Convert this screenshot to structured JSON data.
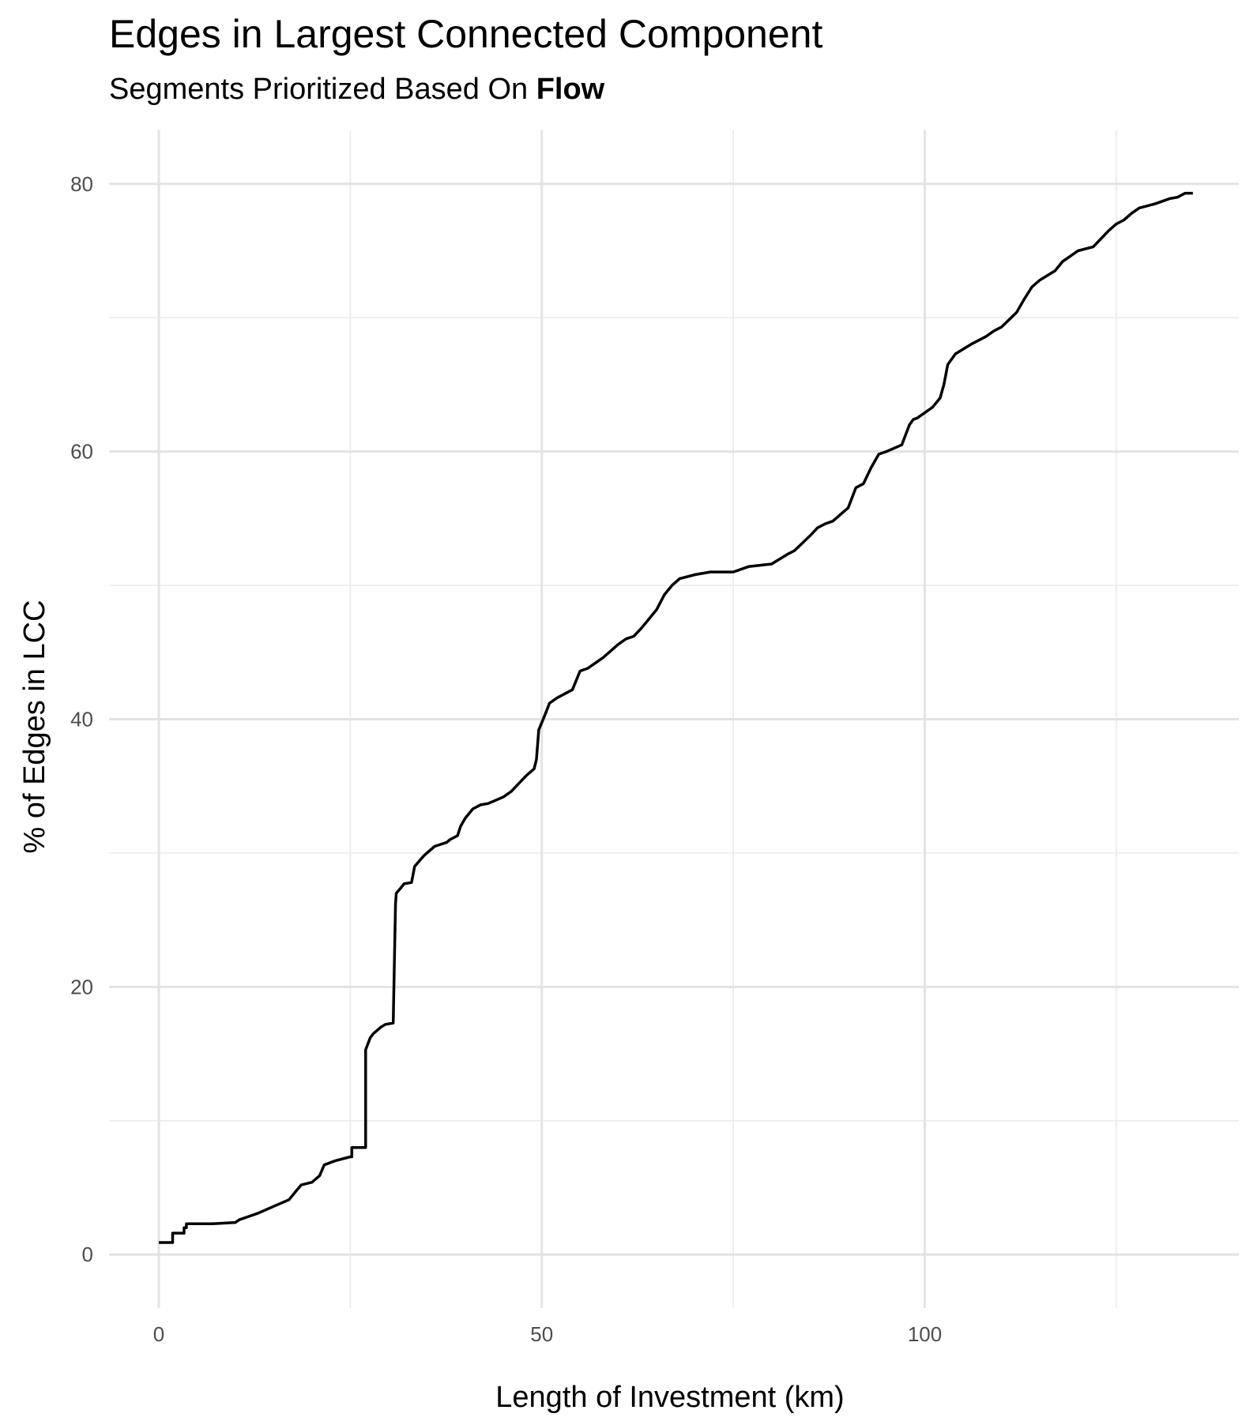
{
  "chart_data": {
    "type": "line",
    "title": "Edges in Largest Connected Component",
    "subtitle_prefix": "Segments Prioritized Based On ",
    "subtitle_emphasis": "Flow",
    "xlabel": "Length of Investment (km)",
    "ylabel": "% of Edges in LCC",
    "xlim": [
      -6.5,
      141
    ],
    "ylim": [
      -4,
      84
    ],
    "x_major_ticks": [
      0,
      50,
      100
    ],
    "x_minor_ticks": [
      25,
      75,
      125
    ],
    "y_major_ticks": [
      0,
      20,
      40,
      60,
      80
    ],
    "y_minor_ticks": [
      10,
      30,
      50,
      70
    ],
    "x_tick_labels": [
      "0",
      "50",
      "100"
    ],
    "y_tick_labels": [
      "0",
      "20",
      "40",
      "60",
      "80"
    ],
    "grid": true,
    "line_color": "#000000",
    "series": [
      {
        "x": [
          0,
          1.8,
          1.8,
          3.3,
          3.3,
          3.6,
          3.6,
          4,
          7,
          10,
          10.5,
          12,
          13,
          15,
          17,
          18,
          18.6,
          20,
          21,
          21.6,
          21.6,
          23,
          25,
          25.2,
          25.2,
          27,
          27,
          27.6,
          28,
          28.6,
          29,
          29.6,
          30.6,
          30.9,
          31,
          31.6,
          32,
          33,
          33.4,
          34.6,
          36,
          37.6,
          38,
          39,
          39.4,
          40,
          41,
          42,
          43,
          45,
          46,
          47,
          48,
          49,
          49.3,
          49.6,
          50.4,
          51,
          52,
          54,
          55,
          56,
          58,
          60,
          61,
          62,
          63,
          65,
          66,
          67,
          68,
          70,
          72,
          75,
          77,
          80,
          82,
          83,
          85,
          86,
          87,
          88,
          90,
          91,
          92,
          93,
          94,
          95,
          97,
          98,
          98.5,
          99,
          101,
          102,
          102.5,
          103,
          104,
          106,
          108,
          109,
          110,
          112,
          113,
          114,
          115,
          117,
          118,
          119,
          120,
          122,
          123,
          124,
          125,
          126,
          127,
          128,
          130,
          131,
          132,
          133,
          134,
          135
        ],
        "y": [
          0.9,
          0.9,
          1.6,
          1.6,
          2.0,
          2.0,
          2.3,
          2.3,
          2.3,
          2.4,
          2.6,
          2.9,
          3.1,
          3.6,
          4.1,
          4.8,
          5.2,
          5.4,
          5.9,
          6.7,
          6.7,
          7.0,
          7.3,
          7.3,
          8.0,
          8.0,
          15.3,
          16.2,
          16.5,
          16.8,
          17.0,
          17.2,
          17.3,
          26.2,
          27.0,
          27.4,
          27.7,
          27.8,
          29.0,
          29.8,
          30.5,
          30.8,
          31.0,
          31.3,
          32.0,
          32.6,
          33.3,
          33.6,
          33.7,
          34.2,
          34.6,
          35.2,
          35.8,
          36.3,
          37.0,
          39.2,
          40.3,
          41.2,
          41.6,
          42.2,
          43.6,
          43.8,
          44.6,
          45.6,
          46.0,
          46.2,
          46.8,
          48.2,
          49.3,
          50.0,
          50.5,
          50.8,
          51.0,
          51.0,
          51.4,
          51.6,
          52.3,
          52.6,
          53.7,
          54.3,
          54.6,
          54.8,
          55.8,
          57.3,
          57.6,
          58.8,
          59.8,
          60.0,
          60.5,
          62.0,
          62.4,
          62.5,
          63.3,
          64.0,
          65.0,
          66.5,
          67.3,
          68.0,
          68.6,
          69.0,
          69.3,
          70.4,
          71.4,
          72.3,
          72.8,
          73.5,
          74.2,
          74.6,
          75.0,
          75.3,
          75.9,
          76.5,
          77.0,
          77.3,
          77.8,
          78.2,
          78.5,
          78.7,
          78.9,
          79.0,
          79.3,
          79.3
        ]
      }
    ]
  }
}
